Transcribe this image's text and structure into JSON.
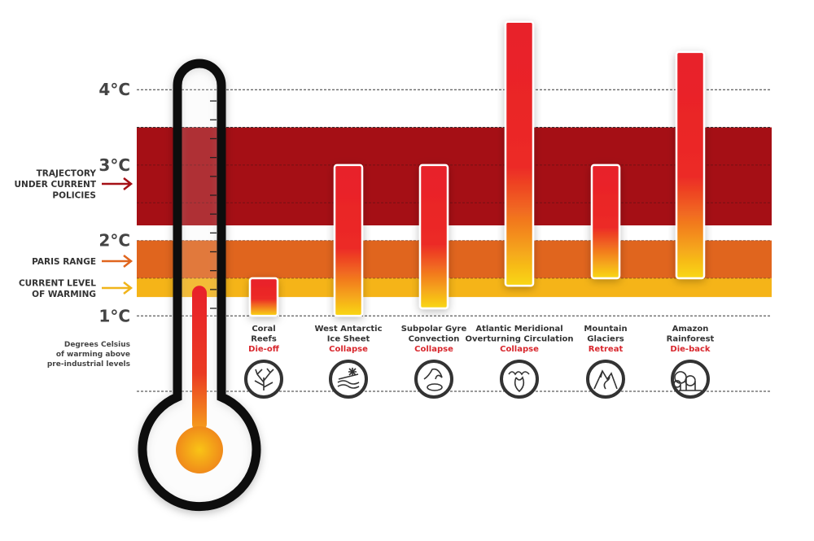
{
  "chart_data": {
    "type": "bar",
    "ylim": [
      0,
      5
    ],
    "yticks": [
      {
        "value": 1,
        "label": "1°C"
      },
      {
        "value": 2,
        "label": "2°C"
      },
      {
        "value": 3,
        "label": "3°C"
      },
      {
        "value": 4,
        "label": "4°C"
      }
    ],
    "ylabel": [
      "Degrees Celsius",
      "of warming above",
      "pre-industrial levels"
    ],
    "bands": [
      {
        "label": [
          "TRAJECTORY",
          "UNDER CURRENT",
          "POLICIES"
        ],
        "from": 2.2,
        "to": 3.5,
        "color": "#a50f15"
      },
      {
        "label": [
          "PARIS RANGE"
        ],
        "from": 1.5,
        "to": 2.0,
        "color": "#e0651e"
      },
      {
        "label": [
          "CURRENT LEVEL",
          "OF WARMING"
        ],
        "from": 1.25,
        "to": 1.5,
        "color": "#f5b418"
      }
    ],
    "current_warming": 1.4,
    "categories": [
      {
        "name": [
          "Coral",
          "Reefs"
        ],
        "status": "Die-off",
        "low": 1.0,
        "high": 1.5,
        "icon": "coral-icon"
      },
      {
        "name": [
          "West Antarctic",
          "Ice Sheet"
        ],
        "status": "Collapse",
        "low": 1.0,
        "high": 3.0,
        "icon": "ice-sheet-icon"
      },
      {
        "name": [
          "Subpolar Gyre",
          "Convection"
        ],
        "status": "Collapse",
        "low": 1.1,
        "high": 3.0,
        "icon": "gyre-icon"
      },
      {
        "name": [
          "Atlantic Meridional",
          "Overturning Circulation"
        ],
        "status": "Collapse",
        "low": 1.4,
        "high": 4.9,
        "icon": "ocean-circulation-icon"
      },
      {
        "name": [
          "Mountain",
          "Glaciers"
        ],
        "status": "Retreat",
        "low": 1.5,
        "high": 3.0,
        "icon": "mountain-icon"
      },
      {
        "name": [
          "Amazon",
          "Rainforest"
        ],
        "status": "Die-back",
        "low": 1.5,
        "high": 4.5,
        "icon": "forest-icon"
      }
    ],
    "colors": {
      "bar_top": "#e8202a",
      "bar_bottom": "#f9d816",
      "text": "#333333",
      "status": "#d8262c"
    }
  }
}
